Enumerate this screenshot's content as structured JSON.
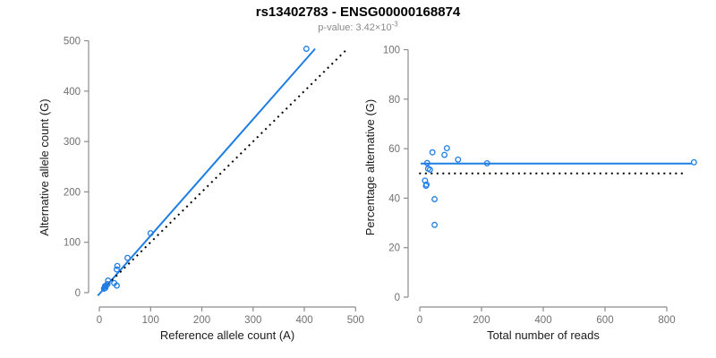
{
  "header": {
    "title": "rs13402783 - ENSG00000168874",
    "subtitle_prefix": "p-value: 3.42×10",
    "subtitle_exponent": "-3"
  },
  "colors": {
    "accent_blue": "#1E7EE3",
    "identity_black": "#000000",
    "axis_line": "#8c8c8c",
    "tick_label": "#707070",
    "axis_label": "#1a1a1a",
    "subtitle": "#8a8a8a"
  },
  "chart_data": [
    {
      "type": "scatter",
      "name": "allele-counts",
      "xlabel": "Reference allele count (A)",
      "ylabel": "Alternative allele count (G)",
      "xlim": [
        0,
        500
      ],
      "ylim": [
        0,
        500
      ],
      "xticks": [
        0,
        100,
        200,
        300,
        400,
        500
      ],
      "yticks": [
        0,
        100,
        200,
        300,
        400,
        500
      ],
      "grid": false,
      "legend": "none",
      "point_color": "#1E7EE3",
      "points": [
        [
          9,
          8
        ],
        [
          11,
          9
        ],
        [
          12,
          10
        ],
        [
          11,
          13
        ],
        [
          13,
          14
        ],
        [
          16,
          17
        ],
        [
          17,
          24
        ],
        [
          29,
          19
        ],
        [
          34,
          14
        ],
        [
          34,
          46
        ],
        [
          35,
          53
        ],
        [
          55,
          69
        ],
        [
          100,
          118
        ],
        [
          404,
          484
        ]
      ],
      "lines": [
        {
          "name": "regression",
          "style": "solid",
          "color": "#1E7EE3",
          "x1": -3,
          "y1": -6,
          "x2": 421,
          "y2": 484
        },
        {
          "name": "identity",
          "style": "dotted",
          "color": "#000000",
          "x1": 8,
          "y1": 8,
          "x2": 483,
          "y2": 483
        }
      ]
    },
    {
      "type": "scatter",
      "name": "percentage-vs-reads",
      "xlabel": "Total number of reads",
      "ylabel": "Percentage alternative (G)",
      "xlim": [
        0,
        800
      ],
      "ylim": [
        0,
        100
      ],
      "xticks": [
        0,
        200,
        400,
        600,
        800
      ],
      "yticks": [
        0,
        20,
        40,
        60,
        80,
        100
      ],
      "grid": false,
      "legend": "none",
      "point_color": "#1E7EE3",
      "points": [
        [
          17,
          47.1
        ],
        [
          20,
          45.0
        ],
        [
          22,
          45.5
        ],
        [
          24,
          54.2
        ],
        [
          27,
          51.9
        ],
        [
          33,
          51.5
        ],
        [
          41,
          58.5
        ],
        [
          48,
          39.6
        ],
        [
          48,
          29.2
        ],
        [
          80,
          57.5
        ],
        [
          88,
          60.2
        ],
        [
          124,
          55.6
        ],
        [
          218,
          54.1
        ],
        [
          888,
          54.5
        ]
      ],
      "lines": [
        {
          "name": "fitted-mean",
          "style": "solid",
          "color": "#1E7EE3",
          "x1": 3,
          "y1": 54,
          "x2": 881,
          "y2": 54
        },
        {
          "name": "reference-50pct",
          "style": "dotted",
          "color": "#000000",
          "x1": -2,
          "y1": 50,
          "x2": 864,
          "y2": 50
        }
      ]
    }
  ]
}
